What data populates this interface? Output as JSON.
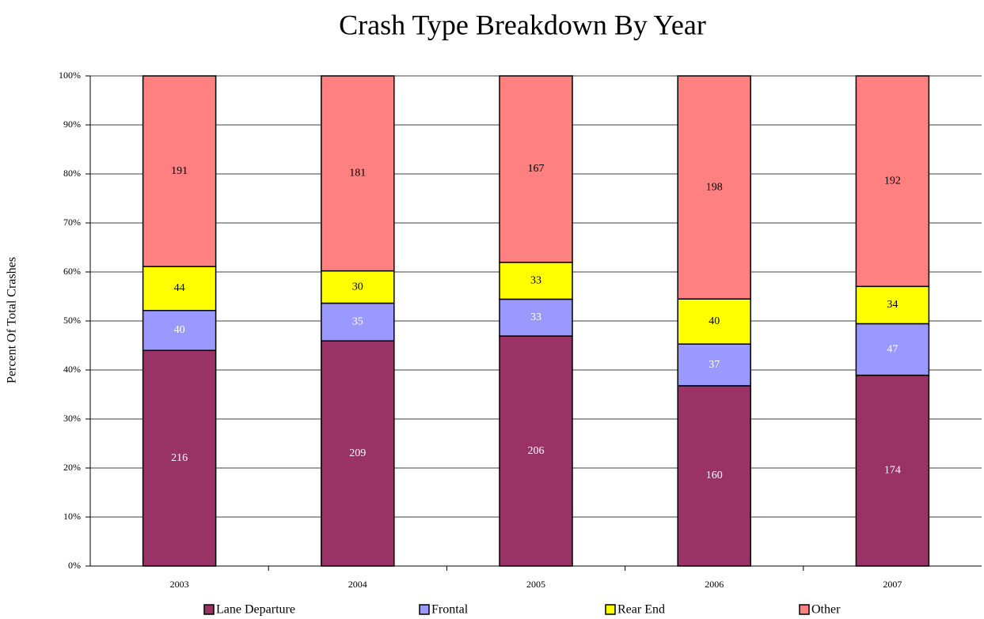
{
  "chart_data": {
    "type": "bar",
    "stacked": "percent",
    "title": "Crash Type Breakdown By Year",
    "y_label": "Percent Of Total Crashes",
    "categories": [
      "2003",
      "2004",
      "2005",
      "2006",
      "2007"
    ],
    "series": [
      {
        "name": "Lane Departure",
        "color": "#993366",
        "label_color": "#ffffff",
        "values": [
          216,
          209,
          206,
          160,
          174
        ]
      },
      {
        "name": "Frontal",
        "color": "#9999ff",
        "label_color": "#ffffff",
        "values": [
          40,
          35,
          33,
          37,
          47
        ]
      },
      {
        "name": "Rear End",
        "color": "#ffff00",
        "label_color": "#000000",
        "values": [
          44,
          30,
          33,
          40,
          34
        ]
      },
      {
        "name": "Other",
        "color": "#ff8080",
        "label_color": "#000000",
        "values": [
          191,
          181,
          167,
          198,
          192
        ]
      }
    ],
    "ylim": [
      0,
      100
    ],
    "yticks": [
      {
        "value": 0,
        "label": "0%"
      },
      {
        "value": 10,
        "label": "10%"
      },
      {
        "value": 20,
        "label": "20%"
      },
      {
        "value": 30,
        "label": "30%"
      },
      {
        "value": 40,
        "label": "40%"
      },
      {
        "value": 50,
        "label": "50%"
      },
      {
        "value": 60,
        "label": "60%"
      },
      {
        "value": 70,
        "label": "70%"
      },
      {
        "value": 80,
        "label": "80%"
      },
      {
        "value": 90,
        "label": "90%"
      },
      {
        "value": 100,
        "label": "100%"
      }
    ],
    "grid": true,
    "legend": "bottom"
  }
}
